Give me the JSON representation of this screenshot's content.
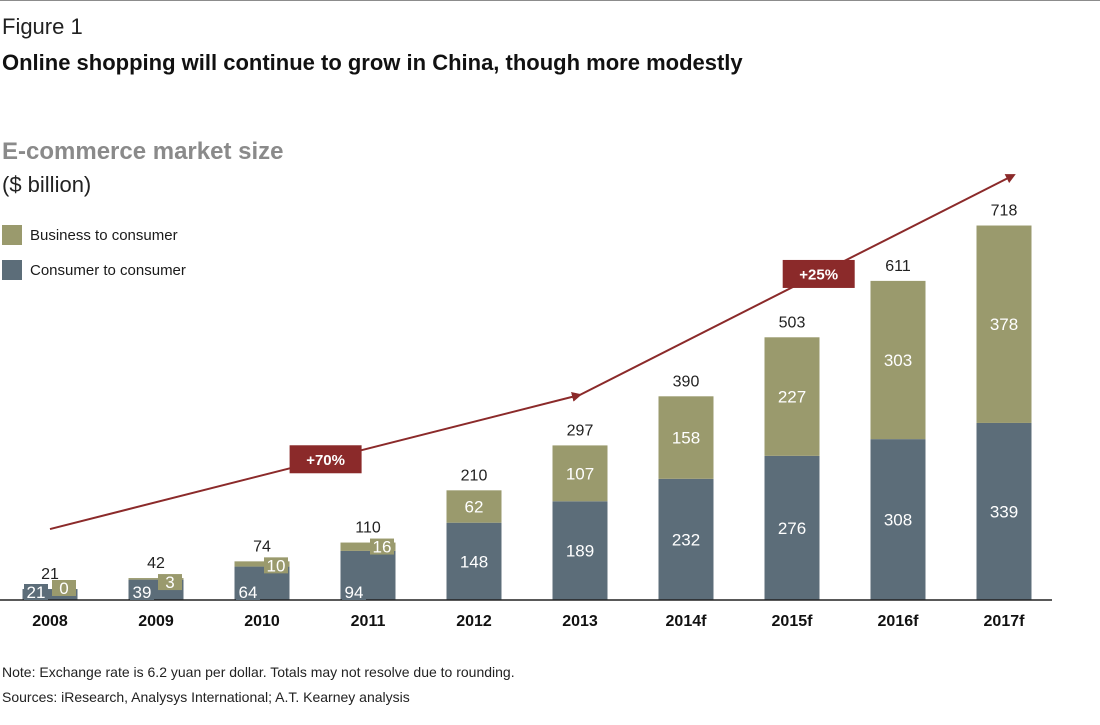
{
  "figure": {
    "label": "Figure 1",
    "title": "Online shopping will continue to grow in China, though more modestly",
    "note": "Note: Exchange rate is 6.2 yuan per dollar. Totals may not resolve due to rounding.",
    "sources": "Sources: iResearch, Analysys International; A.T. Kearney analysis"
  },
  "chart_data": {
    "type": "bar",
    "stacked": true,
    "title": "E-commerce market size",
    "subtitle": "($ billion)",
    "categories": [
      "2008",
      "2009",
      "2010",
      "2011",
      "2012",
      "2013",
      "2014f",
      "2015f",
      "2016f",
      "2017f"
    ],
    "series": [
      {
        "name": "Consumer to consumer",
        "color": "#5c6d79",
        "values": [
          21,
          39,
          64,
          94,
          148,
          189,
          232,
          276,
          308,
          339
        ]
      },
      {
        "name": "Business to consumer",
        "color": "#9a9a6d",
        "values": [
          0,
          3,
          10,
          16,
          62,
          107,
          158,
          227,
          303,
          378
        ]
      }
    ],
    "totals": [
      21,
      42,
      74,
      110,
      210,
      297,
      390,
      503,
      611,
      718
    ],
    "legend_position": "top-left",
    "legend_order": [
      "Business to consumer",
      "Consumer to consumer"
    ],
    "grid": false,
    "ylim": [
      0,
      718
    ],
    "annotations": [
      {
        "label": "+70%",
        "from": "2008",
        "to": "2013",
        "color": "#8b2a2a"
      },
      {
        "label": "+25%",
        "from": "2013",
        "to": "2017f",
        "color": "#8b2a2a"
      }
    ]
  }
}
